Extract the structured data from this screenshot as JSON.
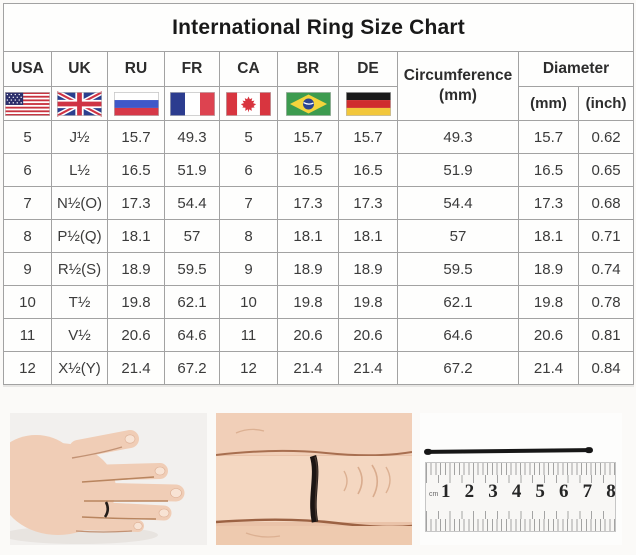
{
  "chart_data": {
    "type": "table",
    "title": "International Ring Size Chart",
    "columns": [
      "USA",
      "UK",
      "RU",
      "FR",
      "CA",
      "BR",
      "DE",
      "Circumference (mm)",
      "Diameter (mm)",
      "Diameter (inch)"
    ],
    "rows": [
      [
        "5",
        "J½",
        "15.7",
        "49.3",
        "5",
        "15.7",
        "15.7",
        "49.3",
        "15.7",
        "0.62"
      ],
      [
        "6",
        "L½",
        "16.5",
        "51.9",
        "6",
        "16.5",
        "16.5",
        "51.9",
        "16.5",
        "0.65"
      ],
      [
        "7",
        "N½(O)",
        "17.3",
        "54.4",
        "7",
        "17.3",
        "17.3",
        "54.4",
        "17.3",
        "0.68"
      ],
      [
        "8",
        "P½(Q)",
        "18.1",
        "57",
        "8",
        "18.1",
        "18.1",
        "57",
        "18.1",
        "0.71"
      ],
      [
        "9",
        "R½(S)",
        "18.9",
        "59.5",
        "9",
        "18.9",
        "18.9",
        "59.5",
        "18.9",
        "0.74"
      ],
      [
        "10",
        "T½",
        "19.8",
        "62.1",
        "10",
        "19.8",
        "19.8",
        "62.1",
        "19.8",
        "0.78"
      ],
      [
        "11",
        "V½",
        "20.6",
        "64.6",
        "11",
        "20.6",
        "20.6",
        "64.6",
        "20.6",
        "0.81"
      ],
      [
        "12",
        "X½(Y)",
        "21.4",
        "67.2",
        "12",
        "21.4",
        "21.4",
        "67.2",
        "21.4",
        "0.84"
      ]
    ]
  },
  "header": {
    "flags": [
      "usa-flag",
      "uk-flag",
      "russia-flag",
      "france-flag",
      "canada-flag",
      "brazil-flag",
      "germany-flag"
    ],
    "circumference_line1": "Circumference",
    "circumference_line2": "(mm)",
    "diameter_label": "Diameter",
    "diameter_mm": "(mm)",
    "diameter_inch": "(inch)"
  },
  "photos": {
    "names": [
      "hand-with-string-ring-photo",
      "finger-string-closeup-photo",
      "string-on-ruler-photo"
    ],
    "ruler": {
      "unit_label": "cm",
      "numbers": [
        "1",
        "2",
        "3",
        "4",
        "5",
        "6",
        "7",
        "8"
      ]
    }
  },
  "colors": {
    "grid_border": "#a2a2a2",
    "page_background": "#fbfaf8",
    "title_text": "#191919",
    "body_text": "#3b3b3b",
    "cord_black": "#171717"
  }
}
